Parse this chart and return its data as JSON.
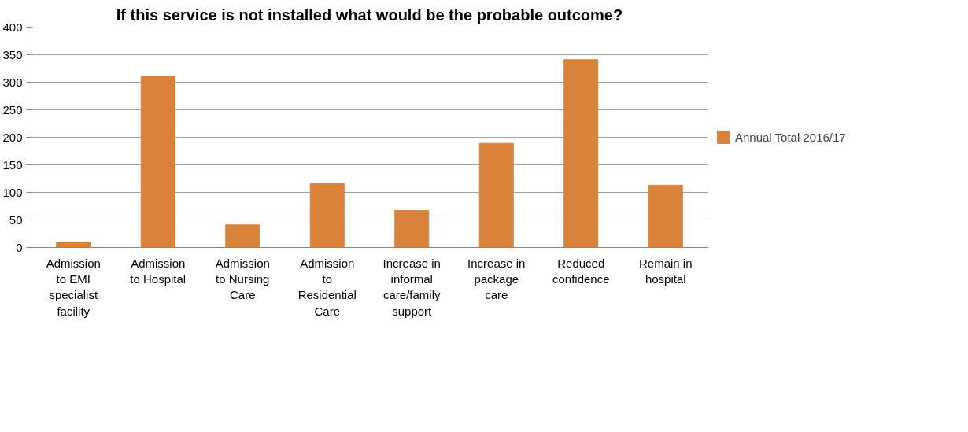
{
  "chart_data": {
    "type": "bar",
    "title": "If this service is not installed what would be the probable outcome?",
    "categories": [
      "Admission to EMI specialist facility",
      "Admission to Hospital",
      "Admission to Nursing Care",
      "Admission to Residential Care",
      "Increase in informal care/family support",
      "Increase in package care",
      "Reduced confidence",
      "Remain in hospital"
    ],
    "series": [
      {
        "name": "Annual Total 2016/17",
        "color": "#d9823b",
        "values": [
          10,
          311,
          41,
          116,
          67,
          189,
          341,
          113
        ]
      }
    ],
    "ylim": [
      0,
      400
    ],
    "yticks": [
      0,
      50,
      100,
      150,
      200,
      250,
      300,
      350,
      400
    ],
    "grid": "y",
    "legend": "right"
  }
}
